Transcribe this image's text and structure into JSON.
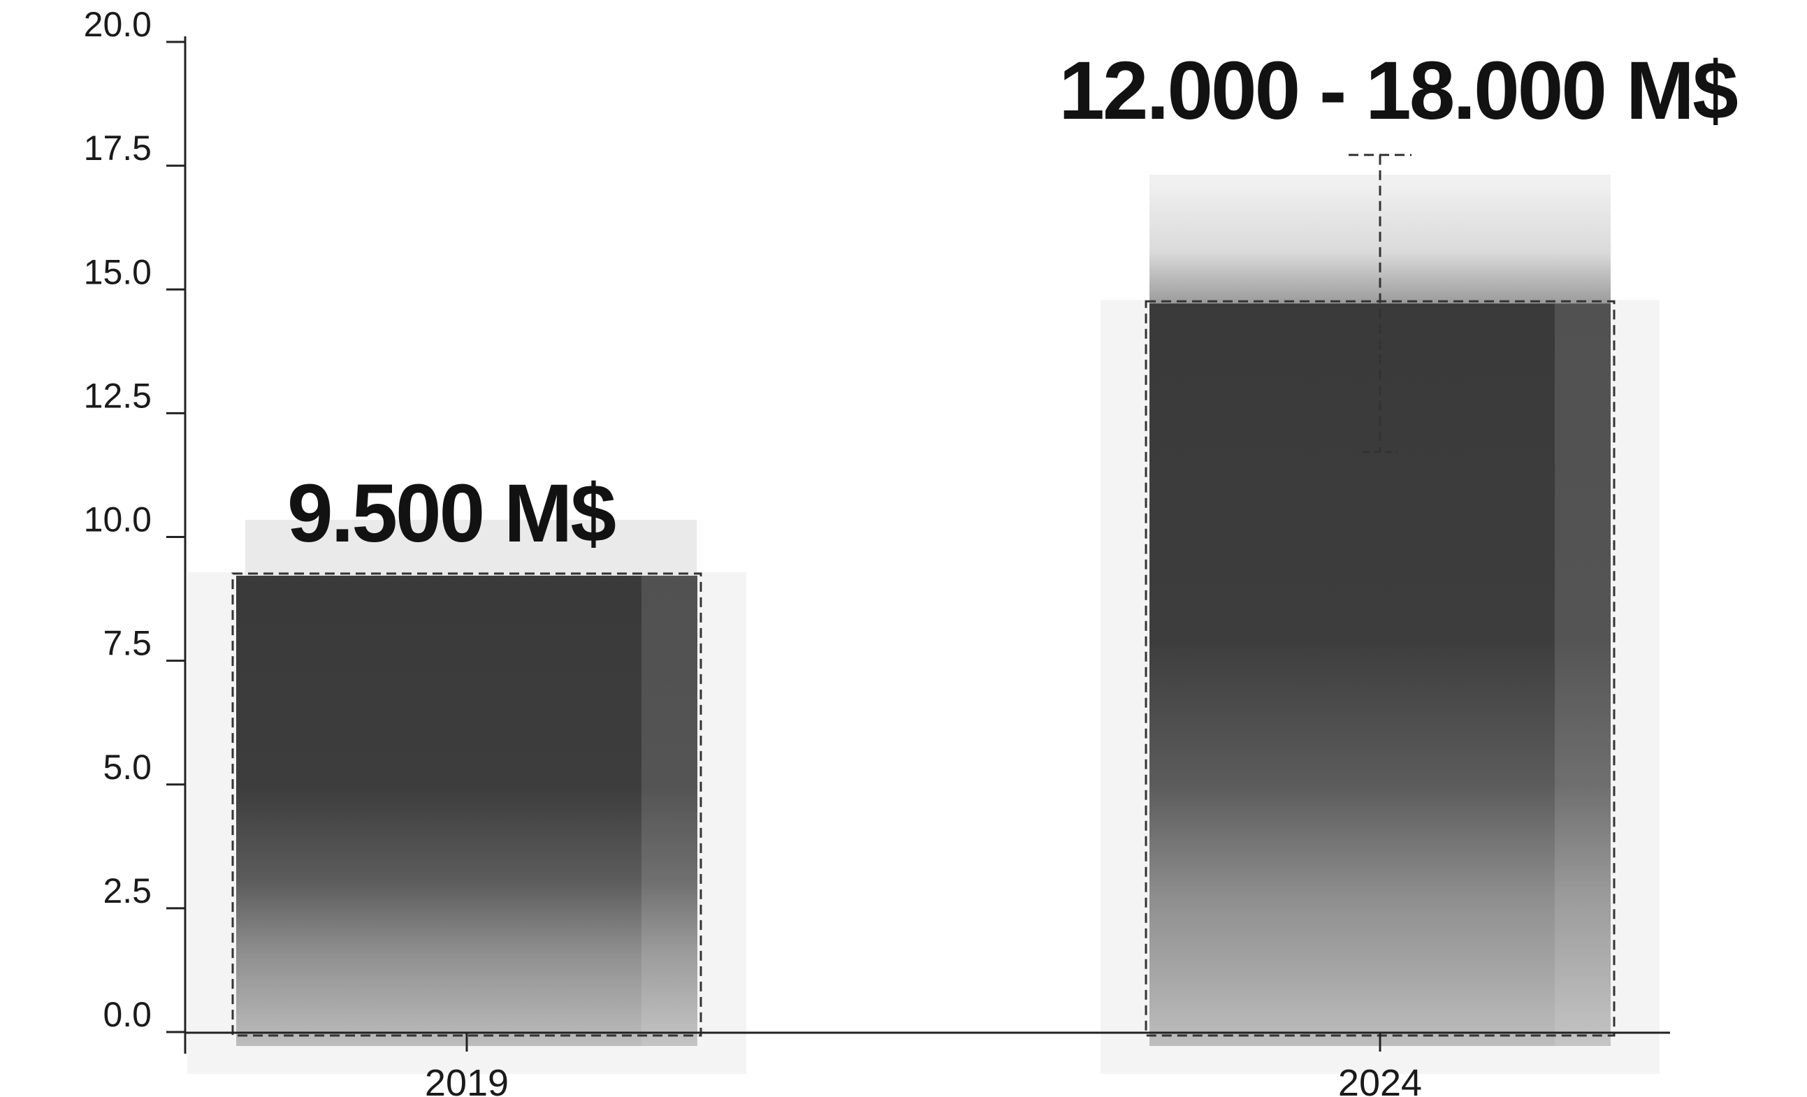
{
  "chart_data": {
    "type": "bar",
    "categories": [
      "2019",
      "2024"
    ],
    "values": [
      9.5,
      15.0
    ],
    "error_range": [
      null,
      [
        12.0,
        18.0
      ]
    ],
    "data_labels": [
      "9.500 M$",
      "12.000 - 18.000 M$"
    ],
    "y_ticks": [
      "0.0",
      "2.5",
      "5.0",
      "7.5",
      "10.0",
      "12.5",
      "15.0",
      "17.5",
      "20.0"
    ],
    "ylim": [
      0,
      20
    ],
    "grid": false,
    "legend": "none",
    "colors": {
      "bar_top": "#333333",
      "bar_mid": "#5a5a5a",
      "bar_bottom": "#b8b8b8",
      "axis": "#222222",
      "text": "#121212"
    }
  }
}
